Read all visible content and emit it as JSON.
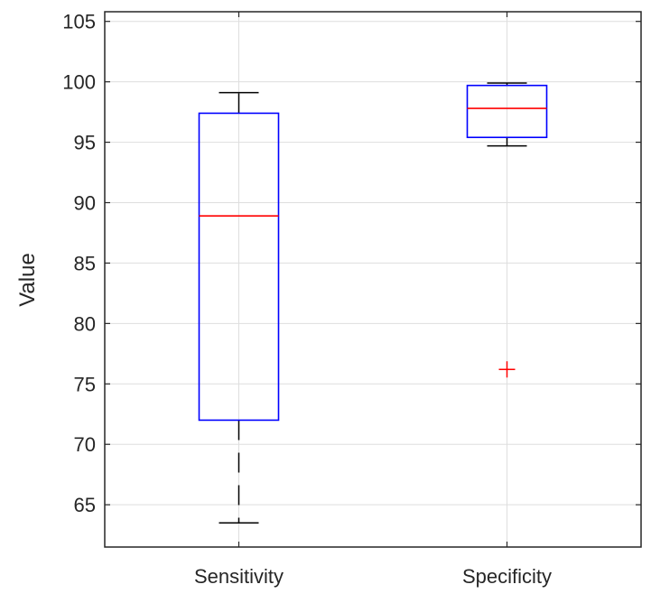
{
  "chart_data": {
    "type": "box",
    "ylabel": "Value",
    "xlabel": "",
    "ylim": [
      61.5,
      105.8
    ],
    "yticks": [
      65,
      70,
      75,
      80,
      85,
      90,
      95,
      100,
      105
    ],
    "ytick_labels": [
      "65",
      "70",
      "75",
      "80",
      "85",
      "90",
      "95",
      "100",
      "105"
    ],
    "grid": true,
    "categories": [
      "Sensitivity",
      "Specificity"
    ],
    "boxes": [
      {
        "category": "Sensitivity",
        "whisker_low": 63.5,
        "q1": 72.0,
        "median": 88.9,
        "q3": 97.4,
        "whisker_high": 99.1,
        "outliers": []
      },
      {
        "category": "Specificity",
        "whisker_low": 94.7,
        "q1": 95.4,
        "median": 97.8,
        "q3": 99.7,
        "whisker_high": 99.9,
        "outliers": [
          76.2
        ]
      }
    ],
    "colors": {
      "box": "#0000ff",
      "median": "#ff0000",
      "whisker": "#000000",
      "outlier": "#ff0000",
      "grid": "#dedede",
      "axis": "#262626"
    }
  }
}
